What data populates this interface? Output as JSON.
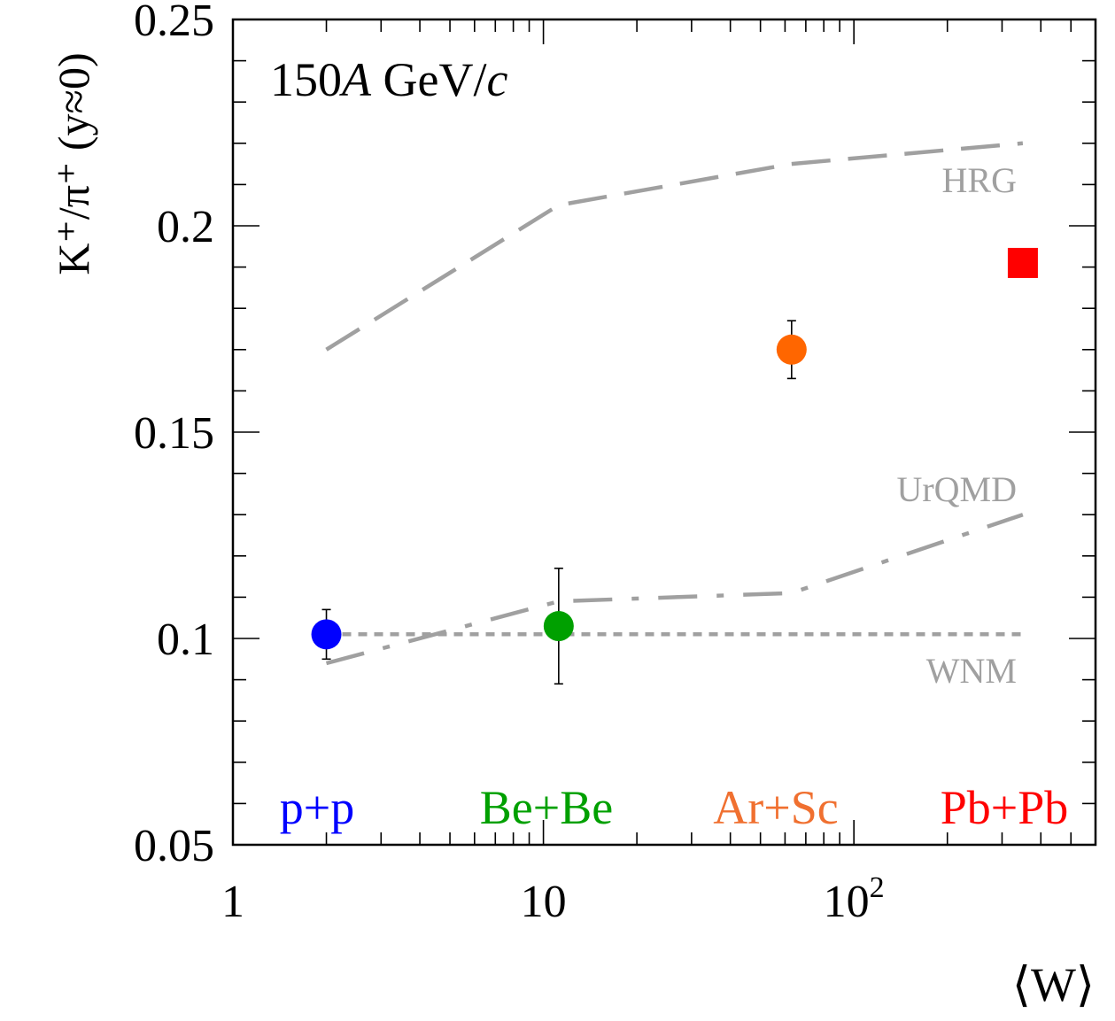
{
  "chart_data": {
    "type": "scatter",
    "title": "150A GeV/c",
    "title_parts": {
      "number": "150",
      "italic_A": "A",
      "unit": "GeV/",
      "italic_c": "c"
    },
    "xlabel": "⟨W⟩",
    "ylabel": "K⁺/π⁺ (y≈0)",
    "x_scale": "log",
    "xlim": [
      1,
      600
    ],
    "ylim": [
      0.05,
      0.25
    ],
    "x_ticks": [
      {
        "value": 1,
        "label": "1"
      },
      {
        "value": 10,
        "label": "10"
      },
      {
        "value": 100,
        "label": "10",
        "sup": "2"
      }
    ],
    "y_ticks": [
      {
        "value": 0.05,
        "label": "0.05"
      },
      {
        "value": 0.1,
        "label": "0.1"
      },
      {
        "value": 0.15,
        "label": "0.15"
      },
      {
        "value": 0.2,
        "label": "0.2"
      },
      {
        "value": 0.25,
        "label": "0.25"
      }
    ],
    "data_points": [
      {
        "name": "p+p",
        "x": 2,
        "y": 0.101,
        "err": 0.006,
        "marker": "circle",
        "color": "#0000ff"
      },
      {
        "name": "Be+Be",
        "x": 11.2,
        "y": 0.103,
        "err": 0.014,
        "marker": "circle",
        "color": "#00a000"
      },
      {
        "name": "Ar+Sc",
        "x": 63,
        "y": 0.17,
        "err": 0.007,
        "marker": "circle",
        "color": "#ff6600"
      },
      {
        "name": "Pb+Pb",
        "x": 350,
        "y": 0.191,
        "err": 0,
        "marker": "square",
        "color": "#ff0000"
      }
    ],
    "models": [
      {
        "name": "HRG",
        "style": "dashed",
        "color": "#a0a0a0",
        "x": [
          2,
          11.2,
          63,
          350
        ],
        "y": [
          0.17,
          0.205,
          0.215,
          0.22
        ]
      },
      {
        "name": "UrQMD",
        "style": "dashdot",
        "color": "#a0a0a0",
        "x": [
          2,
          11.2,
          63,
          350
        ],
        "y": [
          0.094,
          0.109,
          0.111,
          0.13
        ]
      },
      {
        "name": "WNM",
        "style": "dotted",
        "color": "#a0a0a0",
        "x": [
          2,
          350
        ],
        "y": [
          0.101,
          0.101
        ]
      }
    ],
    "system_labels": [
      {
        "text": "p+p",
        "color": "#0000ff"
      },
      {
        "text": "Be+Be",
        "color": "#00a000"
      },
      {
        "text": "Ar+Sc",
        "color": "#f07030"
      },
      {
        "text": "Pb+Pb",
        "color": "#ff0000"
      }
    ]
  }
}
